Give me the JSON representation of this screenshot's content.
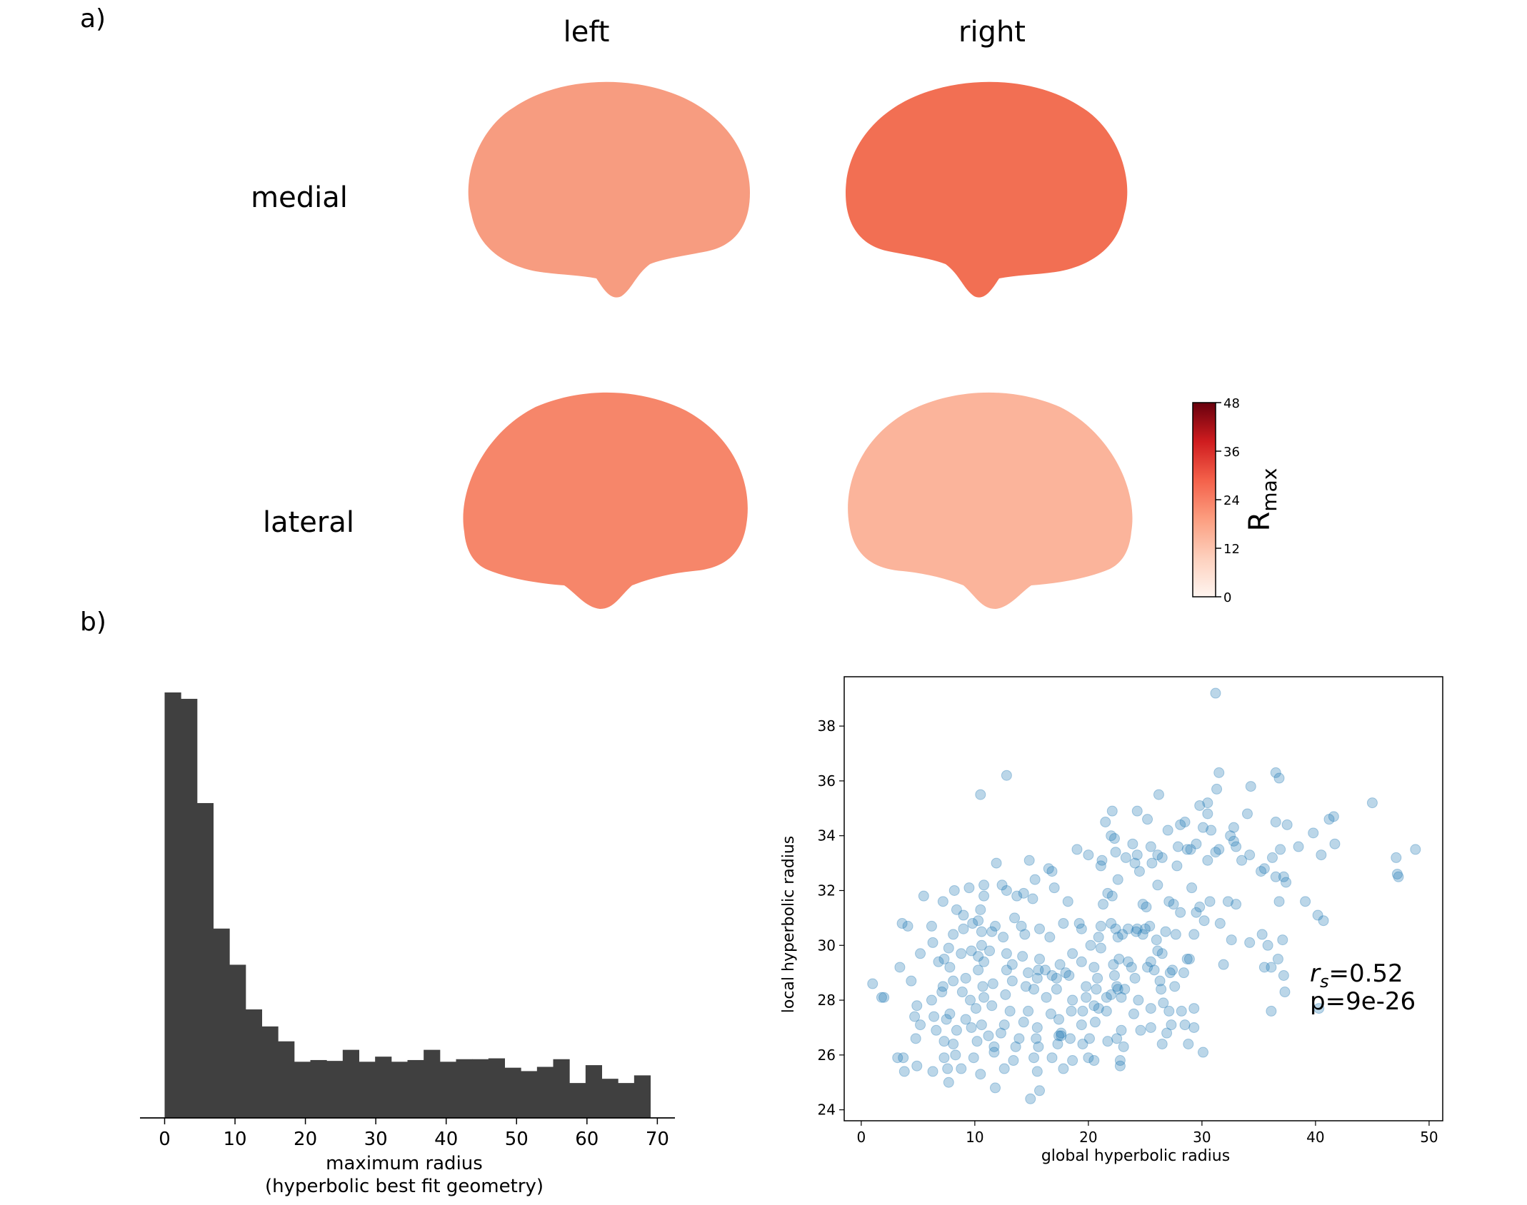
{
  "panels": {
    "a": {
      "label": "a)"
    },
    "b": {
      "label": "b)"
    }
  },
  "brain": {
    "col_labels": [
      "left",
      "right"
    ],
    "row_labels": [
      "medial",
      "lateral"
    ],
    "colors": {
      "low": "#fff5f0",
      "mid": "#f26a4a",
      "high": "#67000d",
      "missing_gray": "#a8a8a8",
      "missing_dark": "#262626"
    },
    "colorbar": {
      "label_main": "R",
      "label_sub": "max",
      "ticks": [
        "48",
        "36",
        "24",
        "12",
        "0"
      ]
    }
  },
  "chart_data": [
    {
      "type": "bar",
      "subtype": "histogram",
      "xlabel": "maximum radius",
      "xlabel2": "(hyperbolic best fit geometry)",
      "ylabel": "",
      "xlim": [
        -3.5,
        72.5
      ],
      "xticks": [
        "0",
        "10",
        "20",
        "30",
        "40",
        "50",
        "60",
        "70"
      ],
      "xtick_values": [
        0,
        10,
        20,
        30,
        40,
        50,
        60,
        70
      ],
      "bin_start": 0,
      "bin_width": 2.3,
      "values": [
        100,
        98.5,
        74,
        44.5,
        36,
        25.5,
        21.5,
        18,
        13.2,
        13.6,
        13.4,
        16,
        13.2,
        14.4,
        13.2,
        13.6,
        16,
        13.2,
        13.8,
        13.8,
        14,
        11.8,
        11,
        12,
        13.8,
        8.2,
        12.4,
        9.2,
        8.2,
        10
      ],
      "ylim": [
        0,
        100
      ],
      "color": "#404040"
    },
    {
      "type": "scatter",
      "xlabel": "global hyperbolic radius",
      "ylabel": "local hyperbolic radius",
      "xlim": [
        -1.5,
        51.2
      ],
      "ylim": [
        23.6,
        39.8
      ],
      "xticks": [
        "0",
        "10",
        "20",
        "30",
        "40",
        "50"
      ],
      "xtick_values": [
        0,
        10,
        20,
        30,
        40,
        50
      ],
      "yticks": [
        "24",
        "26",
        "28",
        "30",
        "32",
        "34",
        "36",
        "38"
      ],
      "ytick_values": [
        24,
        26,
        28,
        30,
        32,
        34,
        36,
        38
      ],
      "color": "#1f77b4",
      "annotation": {
        "r_symbol": "r",
        "r_sub": "s",
        "r_value": "=0.52",
        "p_text": "p=9e-26"
      },
      "points": [
        [
          31.2,
          39.2
        ],
        [
          31.5,
          36.3
        ],
        [
          36.5,
          36.3
        ],
        [
          36.8,
          36.1
        ],
        [
          12.8,
          36.2
        ],
        [
          10.5,
          35.5
        ],
        [
          26.2,
          35.5
        ],
        [
          45,
          35.2
        ],
        [
          31.3,
          35.7
        ],
        [
          34.3,
          35.8
        ],
        [
          29.8,
          35.1
        ],
        [
          30.5,
          35.2
        ],
        [
          34,
          34.8
        ],
        [
          41.6,
          34.7
        ],
        [
          41.2,
          34.6
        ],
        [
          25.2,
          34.6
        ],
        [
          28.1,
          34.4
        ],
        [
          30.5,
          34.8
        ],
        [
          21.5,
          34.5
        ],
        [
          22.1,
          34.9
        ],
        [
          28.5,
          34.5
        ],
        [
          36.5,
          34.5
        ],
        [
          37.5,
          34.4
        ],
        [
          30.1,
          34.3
        ],
        [
          24.3,
          34.9
        ],
        [
          39.8,
          34.1
        ],
        [
          32.8,
          34.3
        ],
        [
          27,
          34.2
        ],
        [
          30.8,
          34.2
        ],
        [
          32.5,
          34
        ],
        [
          22,
          34
        ],
        [
          22.3,
          33.9
        ],
        [
          38.5,
          33.6
        ],
        [
          29.5,
          33.7
        ],
        [
          31.5,
          33.5
        ],
        [
          32.8,
          33.8
        ],
        [
          41.7,
          33.7
        ],
        [
          40.5,
          33.3
        ],
        [
          48.8,
          33.5
        ],
        [
          23.9,
          33.7
        ],
        [
          24.3,
          33.3
        ],
        [
          25.5,
          33.6
        ],
        [
          27.9,
          33.6
        ],
        [
          28.7,
          33.5
        ],
        [
          29,
          33.5
        ],
        [
          33,
          33.6
        ],
        [
          26.1,
          33.3
        ],
        [
          36.9,
          33.5
        ],
        [
          36.2,
          33.2
        ],
        [
          34.2,
          33.3
        ],
        [
          20,
          33.3
        ],
        [
          21.2,
          33.1
        ],
        [
          25.6,
          33
        ],
        [
          26.5,
          33.2
        ],
        [
          30.5,
          33.1
        ],
        [
          47.1,
          33.2
        ],
        [
          31.2,
          33.4
        ],
        [
          33.5,
          33.1
        ],
        [
          21.1,
          32.9
        ],
        [
          22.4,
          33.4
        ],
        [
          23.3,
          33.2
        ],
        [
          24.1,
          33
        ],
        [
          27.8,
          32.9
        ],
        [
          37.2,
          32.5
        ],
        [
          47.3,
          32.5
        ],
        [
          47.2,
          32.6
        ],
        [
          24.5,
          32.7
        ],
        [
          35.5,
          32.8
        ],
        [
          35.2,
          32.7
        ],
        [
          36.5,
          32.5
        ],
        [
          16.8,
          32.7
        ],
        [
          16.5,
          32.8
        ],
        [
          26.1,
          32.2
        ],
        [
          11.9,
          33
        ],
        [
          14.8,
          33.1
        ],
        [
          12.4,
          32.2
        ],
        [
          22.6,
          32.4
        ],
        [
          37.4,
          32.3
        ],
        [
          29.1,
          32.1
        ],
        [
          10.8,
          32.2
        ],
        [
          9.5,
          32.1
        ],
        [
          10.8,
          31.8
        ],
        [
          12.8,
          32
        ],
        [
          13.7,
          31.8
        ],
        [
          14.3,
          31.9
        ],
        [
          15.1,
          31.7
        ],
        [
          15.3,
          32.4
        ],
        [
          21.7,
          31.9
        ],
        [
          22.1,
          31.8
        ],
        [
          21.3,
          31.5
        ],
        [
          5.5,
          31.8
        ],
        [
          8.2,
          32
        ],
        [
          7.2,
          31.6
        ],
        [
          10.5,
          31.3
        ],
        [
          27.1,
          31.6
        ],
        [
          27.5,
          31.5
        ],
        [
          29.8,
          31.4
        ],
        [
          30.7,
          31.6
        ],
        [
          32.3,
          31.6
        ],
        [
          36.8,
          31.6
        ],
        [
          39.1,
          31.6
        ],
        [
          40.2,
          31.1
        ],
        [
          18.2,
          31.6
        ],
        [
          24.8,
          31.5
        ],
        [
          25.1,
          31.4
        ],
        [
          17,
          32.1
        ],
        [
          8.4,
          31.3
        ],
        [
          9,
          31.1
        ],
        [
          10.3,
          30.9
        ],
        [
          9.8,
          30.8
        ],
        [
          11.8,
          30.7
        ],
        [
          14.1,
          30.7
        ],
        [
          15.7,
          30.6
        ],
        [
          17.8,
          30.8
        ],
        [
          21.1,
          30.7
        ],
        [
          22.4,
          30.6
        ],
        [
          23.5,
          30.6
        ],
        [
          24.8,
          30.4
        ],
        [
          26.8,
          30.5
        ],
        [
          29.5,
          31.2
        ],
        [
          30.2,
          30.9
        ],
        [
          31.6,
          30.8
        ],
        [
          28.1,
          31.2
        ],
        [
          37.1,
          30.2
        ],
        [
          40.7,
          30.9
        ],
        [
          3.6,
          30.8
        ],
        [
          4.1,
          30.7
        ],
        [
          6.2,
          30.7
        ],
        [
          8.1,
          30.4
        ],
        [
          9,
          30.6
        ],
        [
          10.6,
          30.5
        ],
        [
          11.5,
          30.5
        ],
        [
          12.5,
          30.3
        ],
        [
          14.4,
          30.4
        ],
        [
          16.6,
          30.3
        ],
        [
          19.2,
          30.8
        ],
        [
          19.4,
          30.6
        ],
        [
          20.9,
          30.3
        ],
        [
          22,
          30.8
        ],
        [
          22.6,
          30.3
        ],
        [
          23,
          30.4
        ],
        [
          24.3,
          30.6
        ],
        [
          25,
          30.6
        ],
        [
          25.4,
          30.7
        ],
        [
          26,
          30.2
        ],
        [
          27.7,
          30.4
        ],
        [
          29.3,
          30.4
        ],
        [
          32.6,
          30.2
        ],
        [
          34.2,
          30.1
        ],
        [
          35.3,
          30.4
        ],
        [
          35.8,
          30
        ],
        [
          6.3,
          30.1
        ],
        [
          7.7,
          29.9
        ],
        [
          9.7,
          29.8
        ],
        [
          10.6,
          30
        ],
        [
          11.3,
          29.8
        ],
        [
          12.8,
          29.7
        ],
        [
          14.2,
          29.6
        ],
        [
          15.7,
          29.5
        ],
        [
          18.6,
          29.7
        ],
        [
          20.2,
          30
        ],
        [
          21.1,
          29.9
        ],
        [
          22.7,
          29.5
        ],
        [
          23.5,
          29.4
        ],
        [
          25.5,
          29.4
        ],
        [
          26.1,
          29.8
        ],
        [
          26.5,
          29.7
        ],
        [
          5.2,
          29.7
        ],
        [
          7.3,
          29.5
        ],
        [
          8.8,
          29.7
        ],
        [
          10.3,
          29.6
        ],
        [
          10.8,
          29.4
        ],
        [
          13.3,
          29.3
        ],
        [
          15.6,
          29.1
        ],
        [
          16.2,
          29.1
        ],
        [
          17.5,
          29.3
        ],
        [
          19.4,
          29.4
        ],
        [
          20.5,
          29.2
        ],
        [
          22.2,
          29.3
        ],
        [
          23.8,
          29.2
        ],
        [
          25.2,
          29.2
        ],
        [
          25.8,
          29.1
        ],
        [
          27.4,
          29.1
        ],
        [
          28.7,
          29.5
        ],
        [
          28.9,
          29.5
        ],
        [
          31.9,
          29.3
        ],
        [
          36.7,
          29.5
        ],
        [
          36.1,
          29.2
        ],
        [
          35.5,
          29.2
        ],
        [
          3.4,
          29.2
        ],
        [
          6.8,
          29.4
        ],
        [
          7.8,
          29.2
        ],
        [
          10.3,
          29.1
        ],
        [
          12.8,
          29.1
        ],
        [
          14.7,
          29
        ],
        [
          15.5,
          28.8
        ],
        [
          16.8,
          28.9
        ],
        [
          17.2,
          28.8
        ],
        [
          18,
          29
        ],
        [
          18.3,
          28.9
        ],
        [
          20.8,
          28.8
        ],
        [
          22.3,
          28.9
        ],
        [
          24.1,
          28.8
        ],
        [
          26.3,
          28.7
        ],
        [
          27.2,
          29
        ],
        [
          28.4,
          29
        ],
        [
          37.2,
          28.9
        ],
        [
          1,
          28.6
        ],
        [
          4.4,
          28.7
        ],
        [
          7.2,
          28.5
        ],
        [
          8.1,
          28.7
        ],
        [
          9.2,
          28.8
        ],
        [
          10.7,
          28.5
        ],
        [
          11.6,
          28.6
        ],
        [
          13.3,
          28.7
        ],
        [
          14.5,
          28.5
        ],
        [
          15.2,
          28.4
        ],
        [
          17.2,
          28.4
        ],
        [
          19.8,
          28.5
        ],
        [
          20.7,
          28.4
        ],
        [
          22,
          28.2
        ],
        [
          22.6,
          28.4
        ],
        [
          23.2,
          28.4
        ],
        [
          26.4,
          28.4
        ],
        [
          27.6,
          28.5
        ],
        [
          37.3,
          28.3
        ],
        [
          2,
          28.1
        ],
        [
          1.8,
          28.1
        ],
        [
          6.2,
          28
        ],
        [
          7.1,
          28.3
        ],
        [
          8.9,
          28.3
        ],
        [
          9.6,
          28
        ],
        [
          10.8,
          28.1
        ],
        [
          12.7,
          28.2
        ],
        [
          16.3,
          28.1
        ],
        [
          18.6,
          28
        ],
        [
          19.8,
          28.1
        ],
        [
          20.5,
          27.8
        ],
        [
          21.6,
          28.1
        ],
        [
          22.9,
          28.1
        ],
        [
          24.4,
          28
        ],
        [
          26.6,
          27.9
        ],
        [
          29.3,
          27.7
        ],
        [
          40.3,
          27.7
        ],
        [
          36.1,
          27.6
        ],
        [
          4.9,
          27.8
        ],
        [
          7.8,
          27.5
        ],
        [
          10.1,
          27.7
        ],
        [
          11.5,
          27.8
        ],
        [
          13.1,
          27.6
        ],
        [
          14.7,
          27.6
        ],
        [
          16.7,
          27.5
        ],
        [
          18.5,
          27.6
        ],
        [
          19.5,
          27.6
        ],
        [
          20.9,
          27.7
        ],
        [
          21.6,
          27.6
        ],
        [
          24,
          27.5
        ],
        [
          25.5,
          27.7
        ],
        [
          27.1,
          27.6
        ],
        [
          28.2,
          27.6
        ],
        [
          4.7,
          27.4
        ],
        [
          6.4,
          27.4
        ],
        [
          7.5,
          27.3
        ],
        [
          9.2,
          27.3
        ],
        [
          10.6,
          27.1
        ],
        [
          12.6,
          27.1
        ],
        [
          14.3,
          27.2
        ],
        [
          15.5,
          27
        ],
        [
          17.4,
          27.3
        ],
        [
          19.4,
          27.1
        ],
        [
          20.6,
          27.2
        ],
        [
          22.9,
          26.9
        ],
        [
          25.5,
          27
        ],
        [
          27.3,
          27.1
        ],
        [
          28.5,
          27.1
        ],
        [
          29.3,
          27
        ],
        [
          5.2,
          27.1
        ],
        [
          6.6,
          26.9
        ],
        [
          8.4,
          26.9
        ],
        [
          9.7,
          27
        ],
        [
          11.2,
          26.7
        ],
        [
          12.3,
          26.8
        ],
        [
          13.9,
          26.6
        ],
        [
          15.4,
          26.6
        ],
        [
          17.4,
          26.7
        ],
        [
          17.6,
          26.7
        ],
        [
          18.4,
          26.6
        ],
        [
          20.1,
          26.6
        ],
        [
          21.7,
          26.5
        ],
        [
          22.5,
          26.6
        ],
        [
          24.6,
          26.9
        ],
        [
          26.9,
          26.8
        ],
        [
          28.8,
          26.4
        ],
        [
          4.8,
          26.6
        ],
        [
          7.3,
          26.5
        ],
        [
          8.1,
          26.4
        ],
        [
          10.2,
          26.5
        ],
        [
          11.7,
          26.3
        ],
        [
          13.6,
          26.3
        ],
        [
          15.6,
          26.3
        ],
        [
          17.3,
          26.4
        ],
        [
          19.5,
          26.4
        ],
        [
          23.1,
          26.3
        ],
        [
          26.5,
          26.4
        ],
        [
          3.2,
          25.9
        ],
        [
          3.7,
          25.9
        ],
        [
          4.9,
          25.6
        ],
        [
          7.3,
          25.9
        ],
        [
          8.3,
          26
        ],
        [
          9.9,
          25.9
        ],
        [
          11.7,
          26.1
        ],
        [
          13.4,
          25.8
        ],
        [
          15.2,
          25.9
        ],
        [
          16.8,
          25.9
        ],
        [
          18.6,
          25.8
        ],
        [
          20,
          25.9
        ],
        [
          22.8,
          25.8
        ],
        [
          30.1,
          26.1
        ],
        [
          3.8,
          25.4
        ],
        [
          6.3,
          25.4
        ],
        [
          7.6,
          25.5
        ],
        [
          8.8,
          25.5
        ],
        [
          10.5,
          25.3
        ],
        [
          12.6,
          25.5
        ],
        [
          15.5,
          25.4
        ],
        [
          17.8,
          25.5
        ],
        [
          20.5,
          25.8
        ],
        [
          22.8,
          25.6
        ],
        [
          7.7,
          25
        ],
        [
          11.8,
          24.8
        ],
        [
          15.7,
          24.7
        ],
        [
          14.9,
          24.4
        ],
        [
          17.6,
          26.8
        ],
        [
          22.5,
          28.5
        ],
        [
          24.2,
          30.5
        ],
        [
          13.5,
          31
        ],
        [
          19,
          33.5
        ],
        [
          33,
          31.5
        ]
      ]
    }
  ]
}
